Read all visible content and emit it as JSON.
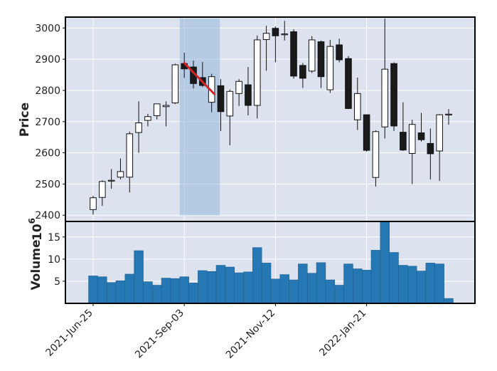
{
  "chart_data": [
    {
      "type": "candlestick",
      "ylabel": "Price",
      "ylim": [
        2380,
        3035
      ],
      "yticks": [
        2400,
        2500,
        2600,
        2700,
        2800,
        2900,
        3000
      ],
      "grid": true,
      "up_color": "#ffffff",
      "down_color": "#1a1a1a",
      "candles": [
        {
          "open": 2418,
          "high": 2462,
          "low": 2402,
          "close": 2456
        },
        {
          "open": 2457,
          "high": 2512,
          "low": 2430,
          "close": 2508
        },
        {
          "open": 2510,
          "high": 2548,
          "low": 2485,
          "close": 2512
        },
        {
          "open": 2522,
          "high": 2582,
          "low": 2515,
          "close": 2540
        },
        {
          "open": 2522,
          "high": 2668,
          "low": 2473,
          "close": 2661
        },
        {
          "open": 2665,
          "high": 2765,
          "low": 2600,
          "close": 2696
        },
        {
          "open": 2704,
          "high": 2725,
          "low": 2685,
          "close": 2716
        },
        {
          "open": 2719,
          "high": 2757,
          "low": 2707,
          "close": 2757
        },
        {
          "open": 2748,
          "high": 2765,
          "low": 2685,
          "close": 2752
        },
        {
          "open": 2760,
          "high": 2886,
          "low": 2756,
          "close": 2882
        },
        {
          "open": 2886,
          "high": 2921,
          "low": 2840,
          "close": 2869
        },
        {
          "open": 2875,
          "high": 2896,
          "low": 2806,
          "close": 2822
        },
        {
          "open": 2841,
          "high": 2891,
          "low": 2811,
          "close": 2816
        },
        {
          "open": 2762,
          "high": 2853,
          "low": 2730,
          "close": 2844
        },
        {
          "open": 2815,
          "high": 2836,
          "low": 2670,
          "close": 2732
        },
        {
          "open": 2718,
          "high": 2803,
          "low": 2624,
          "close": 2797
        },
        {
          "open": 2790,
          "high": 2836,
          "low": 2750,
          "close": 2829
        },
        {
          "open": 2818,
          "high": 2875,
          "low": 2720,
          "close": 2752
        },
        {
          "open": 2752,
          "high": 2976,
          "low": 2710,
          "close": 2962
        },
        {
          "open": 2963,
          "high": 3007,
          "low": 2863,
          "close": 2983
        },
        {
          "open": 2999,
          "high": 3005,
          "low": 2890,
          "close": 2975
        },
        {
          "open": 2980,
          "high": 3023,
          "low": 2960,
          "close": 2981
        },
        {
          "open": 2988,
          "high": 2996,
          "low": 2838,
          "close": 2846
        },
        {
          "open": 2880,
          "high": 2888,
          "low": 2808,
          "close": 2839
        },
        {
          "open": 2862,
          "high": 2974,
          "low": 2856,
          "close": 2962
        },
        {
          "open": 2956,
          "high": 2960,
          "low": 2808,
          "close": 2844
        },
        {
          "open": 2802,
          "high": 2962,
          "low": 2792,
          "close": 2941
        },
        {
          "open": 2946,
          "high": 2966,
          "low": 2890,
          "close": 2898
        },
        {
          "open": 2902,
          "high": 2910,
          "low": 2740,
          "close": 2742
        },
        {
          "open": 2706,
          "high": 2841,
          "low": 2673,
          "close": 2790
        },
        {
          "open": 2722,
          "high": 2723,
          "low": 2604,
          "close": 2608
        },
        {
          "open": 2521,
          "high": 2672,
          "low": 2492,
          "close": 2668
        },
        {
          "open": 2683,
          "high": 3030,
          "low": 2646,
          "close": 2868
        },
        {
          "open": 2886,
          "high": 2890,
          "low": 2670,
          "close": 2686
        },
        {
          "open": 2666,
          "high": 2762,
          "low": 2606,
          "close": 2609
        },
        {
          "open": 2598,
          "high": 2706,
          "low": 2500,
          "close": 2691
        },
        {
          "open": 2664,
          "high": 2728,
          "low": 2636,
          "close": 2642
        },
        {
          "open": 2630,
          "high": 2678,
          "low": 2515,
          "close": 2597
        },
        {
          "open": 2606,
          "high": 2724,
          "low": 2510,
          "close": 2722
        },
        {
          "open": 2722,
          "high": 2740,
          "low": 2690,
          "close": 2724
        }
      ],
      "highlight": {
        "from_index": 9.5,
        "to_index": 13.9,
        "y_from": 2400,
        "y_to": 3030,
        "color": "#9bbcdc"
      },
      "trendline": {
        "from": {
          "index": 10,
          "value": 2888
        },
        "to": {
          "index": 13.3,
          "value": 2788
        },
        "color": "#d0252a"
      }
    },
    {
      "type": "bar",
      "ylabel": "Volume",
      "scale_label": "10",
      "scale_exponent": "6",
      "ylim": [
        0,
        18.5
      ],
      "yticks": [
        5,
        10,
        15
      ],
      "bar_color": "#2678b4",
      "values": [
        6.2,
        6.0,
        4.7,
        5.1,
        6.6,
        11.9,
        4.9,
        4.1,
        5.7,
        5.6,
        6.0,
        4.6,
        7.4,
        7.2,
        8.6,
        8.2,
        6.9,
        7.1,
        12.6,
        9.1,
        5.5,
        6.5,
        5.3,
        8.9,
        6.8,
        9.2,
        5.3,
        4.1,
        8.9,
        7.8,
        7.5,
        12.0,
        18.4,
        11.5,
        8.6,
        8.4,
        7.3,
        9.1,
        8.9,
        1.1
      ]
    }
  ],
  "x_tick_labels": [
    "2021-Jun-25",
    "2021-Sep-03",
    "2021-Nov-12",
    "2022-Jan-21"
  ],
  "x_tick_index": [
    0,
    10,
    20,
    30
  ],
  "colors": {
    "face": "#dce2ee",
    "grid": "#ffffff",
    "frame": "#000000"
  }
}
